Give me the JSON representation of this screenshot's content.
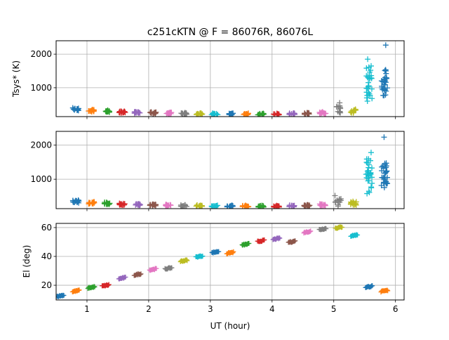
{
  "chart_data": {
    "type": "scatter",
    "title": "c251cKTN @ F = 86076R, 86076L",
    "xlabel": "UT (hour)",
    "xlim": [
      0.5,
      6.14
    ],
    "xticks": [
      1,
      2,
      3,
      4,
      5,
      6
    ],
    "grid": true,
    "colors": [
      "#1f77b4",
      "#ff7f0e",
      "#2ca02c",
      "#d62728",
      "#9467bd",
      "#8c564b",
      "#e377c2",
      "#7f7f7f",
      "#bcbd22",
      "#17becf"
    ],
    "panels": [
      {
        "ylabel": "Tsys* (K)",
        "ylim": [
          140,
          2400
        ],
        "yticks": [
          1000,
          2000
        ],
        "marker": "+",
        "scans": [
          {
            "t": 0.82,
            "median": 360,
            "min": 320,
            "max": 400
          },
          {
            "t": 1.07,
            "median": 320,
            "min": 285,
            "max": 350
          },
          {
            "t": 1.32,
            "median": 300,
            "min": 270,
            "max": 330
          },
          {
            "t": 1.57,
            "median": 275,
            "min": 250,
            "max": 300
          },
          {
            "t": 1.82,
            "median": 260,
            "min": 240,
            "max": 285
          },
          {
            "t": 2.07,
            "median": 250,
            "min": 225,
            "max": 275
          },
          {
            "t": 2.32,
            "median": 240,
            "min": 215,
            "max": 265
          },
          {
            "t": 2.57,
            "median": 230,
            "min": 205,
            "max": 255
          },
          {
            "t": 2.82,
            "median": 220,
            "min": 200,
            "max": 245
          },
          {
            "t": 3.07,
            "median": 215,
            "min": 195,
            "max": 240
          },
          {
            "t": 3.32,
            "median": 215,
            "min": 195,
            "max": 240
          },
          {
            "t": 3.57,
            "median": 215,
            "min": 195,
            "max": 240
          },
          {
            "t": 3.82,
            "median": 210,
            "min": 190,
            "max": 235
          },
          {
            "t": 4.07,
            "median": 210,
            "min": 190,
            "max": 235
          },
          {
            "t": 4.32,
            "median": 220,
            "min": 200,
            "max": 245
          },
          {
            "t": 4.57,
            "median": 230,
            "min": 205,
            "max": 255
          },
          {
            "t": 4.82,
            "median": 250,
            "min": 225,
            "max": 280
          },
          {
            "t": 5.07,
            "median": 340,
            "min": 260,
            "max": 550
          },
          {
            "t": 5.32,
            "median": 300,
            "min": 250,
            "max": 360
          },
          {
            "t": 5.57,
            "median": 1200,
            "min": 600,
            "max": 1850
          },
          {
            "t": 5.82,
            "median": 1150,
            "min": 950,
            "max": 2270
          }
        ]
      },
      {
        "ylabel": "",
        "ylim": [
          140,
          2400
        ],
        "yticks": [
          1000,
          2000
        ],
        "marker": "+",
        "scans": [
          {
            "t": 0.82,
            "median": 350,
            "min": 310,
            "max": 390
          },
          {
            "t": 1.07,
            "median": 310,
            "min": 280,
            "max": 340
          },
          {
            "t": 1.32,
            "median": 295,
            "min": 265,
            "max": 325
          },
          {
            "t": 1.57,
            "median": 270,
            "min": 245,
            "max": 295
          },
          {
            "t": 1.82,
            "median": 255,
            "min": 235,
            "max": 280
          },
          {
            "t": 2.07,
            "median": 245,
            "min": 220,
            "max": 270
          },
          {
            "t": 2.32,
            "median": 235,
            "min": 210,
            "max": 260
          },
          {
            "t": 2.57,
            "median": 225,
            "min": 200,
            "max": 250
          },
          {
            "t": 2.82,
            "median": 220,
            "min": 195,
            "max": 245
          },
          {
            "t": 3.07,
            "median": 210,
            "min": 190,
            "max": 235
          },
          {
            "t": 3.32,
            "median": 210,
            "min": 190,
            "max": 235
          },
          {
            "t": 3.57,
            "median": 210,
            "min": 190,
            "max": 235
          },
          {
            "t": 3.82,
            "median": 205,
            "min": 185,
            "max": 230
          },
          {
            "t": 4.07,
            "median": 205,
            "min": 185,
            "max": 230
          },
          {
            "t": 4.32,
            "median": 215,
            "min": 195,
            "max": 240
          },
          {
            "t": 4.57,
            "median": 225,
            "min": 200,
            "max": 250
          },
          {
            "t": 4.82,
            "median": 245,
            "min": 220,
            "max": 275
          },
          {
            "t": 5.07,
            "median": 330,
            "min": 250,
            "max": 520
          },
          {
            "t": 5.32,
            "median": 295,
            "min": 245,
            "max": 350
          },
          {
            "t": 5.57,
            "median": 1150,
            "min": 580,
            "max": 1780
          },
          {
            "t": 5.82,
            "median": 1100,
            "min": 920,
            "max": 2230
          }
        ]
      },
      {
        "ylabel": "El (deg)",
        "ylim": [
          9.8,
          62.9
        ],
        "yticks": [
          20,
          40,
          60
        ],
        "marker": "+",
        "scans": [
          {
            "t": 0.57,
            "el": 12.7
          },
          {
            "t": 0.82,
            "el": 16.0
          },
          {
            "t": 1.07,
            "el": 18.5
          },
          {
            "t": 1.3,
            "el": 19.8
          },
          {
            "t": 1.57,
            "el": 24.9
          },
          {
            "t": 1.82,
            "el": 27.5
          },
          {
            "t": 2.07,
            "el": 31.0
          },
          {
            "t": 2.32,
            "el": 31.7
          },
          {
            "t": 2.57,
            "el": 37.0
          },
          {
            "t": 2.82,
            "el": 40.0
          },
          {
            "t": 3.08,
            "el": 43.0
          },
          {
            "t": 3.32,
            "el": 42.5
          },
          {
            "t": 3.57,
            "el": 48.3
          },
          {
            "t": 3.82,
            "el": 50.7
          },
          {
            "t": 4.07,
            "el": 52.2
          },
          {
            "t": 4.32,
            "el": 50.2
          },
          {
            "t": 4.57,
            "el": 57.0
          },
          {
            "t": 4.82,
            "el": 59.0
          },
          {
            "t": 5.08,
            "el": 60.0
          },
          {
            "t": 5.33,
            "el": 54.6
          },
          {
            "t": 5.57,
            "el": 19.0
          },
          {
            "t": 5.82,
            "el": 16.0
          }
        ]
      }
    ]
  }
}
